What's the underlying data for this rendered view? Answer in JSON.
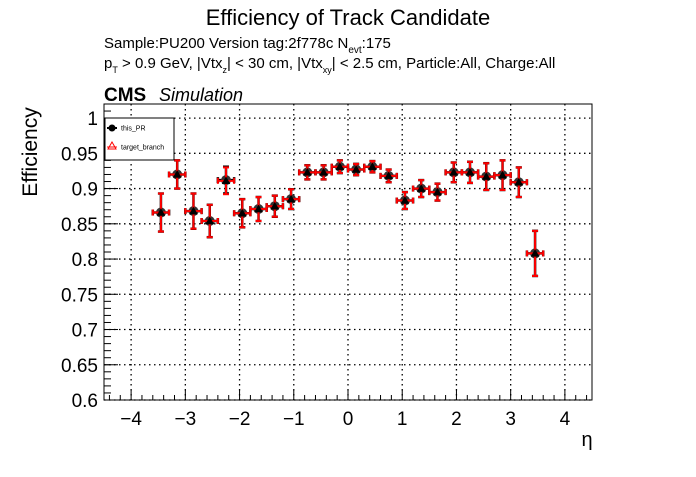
{
  "chart_data": {
    "type": "scatter",
    "title": "Efficiency of Track Candidate",
    "subtitle_line1": "Sample:PU200   Version tag:2f778c  N",
    "subtitle_line1_sub": "evt",
    "subtitle_line1_end": ":175",
    "subtitle_line2": {
      "p": "p",
      "p_sub": "T",
      "a": " > 0.9 GeV, |Vtx",
      "a_sub": "z",
      "b": "| < 30 cm, |Vtx",
      "b_sub": "xy",
      "c": "| < 2.5 cm, Particle:All, Charge:All"
    },
    "cms_label": "CMS",
    "simulation_label": "Simulation",
    "xlabel": "η",
    "ylabel": "Efficiency",
    "xlim": [
      -4.5,
      4.5
    ],
    "ylim": [
      0.6,
      1.02
    ],
    "xticks": [
      -4,
      -3,
      -2,
      -1,
      0,
      1,
      2,
      3,
      4
    ],
    "yticks": [
      0.6,
      0.65,
      0.7,
      0.75,
      0.8,
      0.85,
      0.9,
      0.95,
      1
    ],
    "ytick_labels": [
      "0.6",
      "0.65",
      "0.7",
      "0.75",
      "0.8",
      "0.85",
      "0.9",
      "0.95",
      "1"
    ],
    "grid": true,
    "legend_position": "top-left",
    "x": [
      -3.45,
      -3.15,
      -2.85,
      -2.55,
      -2.25,
      -1.95,
      -1.65,
      -1.35,
      -1.05,
      -0.75,
      -0.45,
      -0.15,
      0.15,
      0.45,
      0.75,
      1.05,
      1.35,
      1.65,
      1.95,
      2.25,
      2.55,
      2.85,
      3.15,
      3.45
    ],
    "x_err": 0.15,
    "series": [
      {
        "name": "this_PR",
        "color": "#000000",
        "marker": "filled-circle",
        "values": [
          0.866,
          0.92,
          0.868,
          0.854,
          0.912,
          0.865,
          0.871,
          0.875,
          0.885,
          0.923,
          0.923,
          0.931,
          0.927,
          0.931,
          0.918,
          0.883,
          0.9,
          0.895,
          0.923,
          0.923,
          0.917,
          0.919,
          0.909,
          0.808
        ],
        "errors": [
          0.027,
          0.02,
          0.025,
          0.023,
          0.019,
          0.02,
          0.017,
          0.015,
          0.014,
          0.01,
          0.01,
          0.009,
          0.008,
          0.008,
          0.009,
          0.012,
          0.012,
          0.012,
          0.014,
          0.015,
          0.019,
          0.021,
          0.021,
          0.032
        ]
      },
      {
        "name": "target_branch",
        "color": "#ff0000",
        "marker": "open-triangle",
        "values": [
          0.866,
          0.92,
          0.868,
          0.854,
          0.911,
          0.865,
          0.871,
          0.875,
          0.885,
          0.923,
          0.923,
          0.931,
          0.927,
          0.931,
          0.918,
          0.883,
          0.9,
          0.895,
          0.923,
          0.923,
          0.917,
          0.919,
          0.909,
          0.808
        ],
        "errors": [
          0.027,
          0.02,
          0.025,
          0.023,
          0.019,
          0.02,
          0.017,
          0.015,
          0.014,
          0.01,
          0.01,
          0.009,
          0.008,
          0.008,
          0.009,
          0.012,
          0.012,
          0.012,
          0.014,
          0.015,
          0.019,
          0.021,
          0.021,
          0.032
        ]
      }
    ]
  }
}
